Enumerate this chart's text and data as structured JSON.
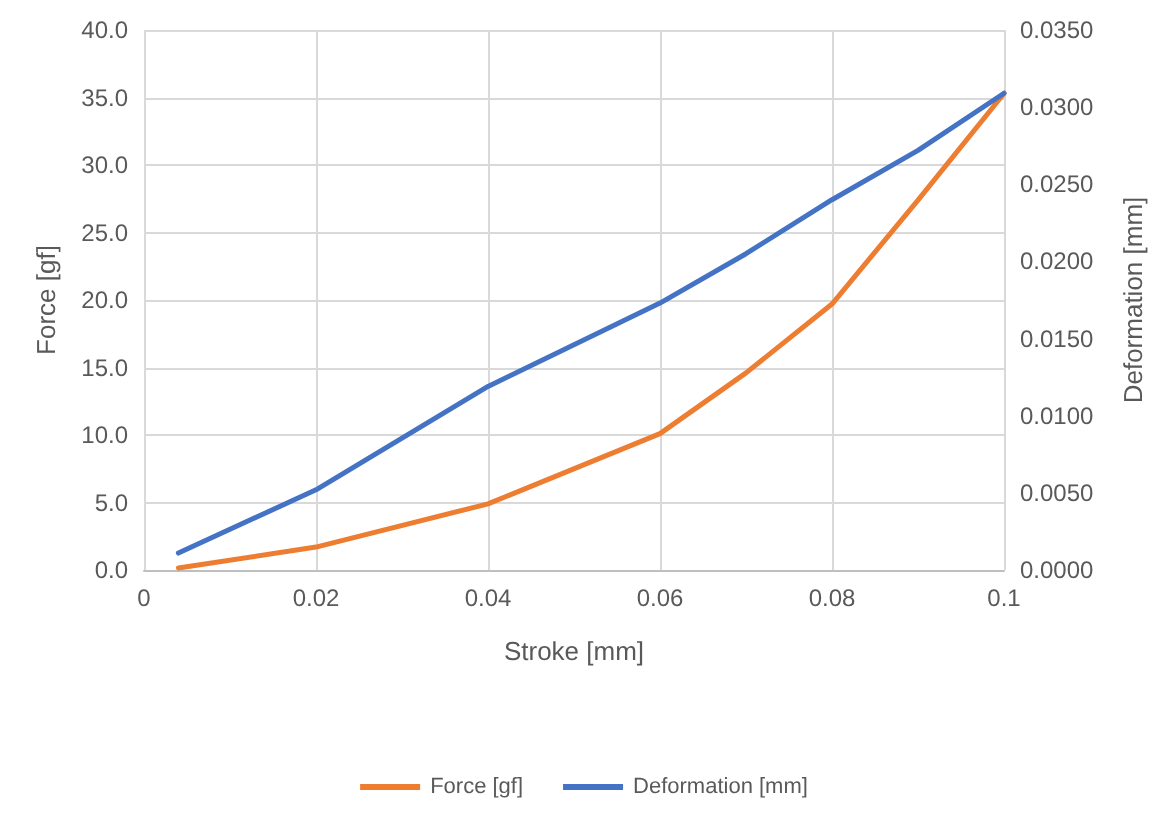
{
  "chart_data": {
    "type": "line",
    "xlabel": "Stroke [mm]",
    "ylabel": "Force [gf]",
    "y2label": "Deformation [mm]",
    "xlim": [
      0,
      0.1
    ],
    "xticks": [
      {
        "value": 0,
        "label": "0"
      },
      {
        "value": 0.02,
        "label": "0.02"
      },
      {
        "value": 0.04,
        "label": "0.04"
      },
      {
        "value": 0.06,
        "label": "0.06"
      },
      {
        "value": 0.08,
        "label": "0.08"
      },
      {
        "value": 0.1,
        "label": "0.1"
      }
    ],
    "ylim": [
      0,
      40
    ],
    "yticks": [
      {
        "value": 0,
        "label": "0.0"
      },
      {
        "value": 5,
        "label": "5.0"
      },
      {
        "value": 10,
        "label": "10.0"
      },
      {
        "value": 15,
        "label": "15.0"
      },
      {
        "value": 20,
        "label": "20.0"
      },
      {
        "value": 25,
        "label": "25.0"
      },
      {
        "value": 30,
        "label": "30.0"
      },
      {
        "value": 35,
        "label": "35.0"
      },
      {
        "value": 40,
        "label": "40.0"
      }
    ],
    "y2lim": [
      0,
      0.035
    ],
    "y2ticks": [
      {
        "value": 0,
        "label": "0.0000"
      },
      {
        "value": 0.005,
        "label": "0.0050"
      },
      {
        "value": 0.01,
        "label": "0.0100"
      },
      {
        "value": 0.015,
        "label": "0.0150"
      },
      {
        "value": 0.02,
        "label": "0.0200"
      },
      {
        "value": 0.025,
        "label": "0.0250"
      },
      {
        "value": 0.03,
        "label": "0.0300"
      },
      {
        "value": 0.035,
        "label": "0.0350"
      }
    ],
    "x": [
      0.004,
      0.02,
      0.04,
      0.06,
      0.07,
      0.08,
      0.09,
      0.1
    ],
    "series": [
      {
        "name": "Force [gf]",
        "color": "#ed7d31",
        "values": [
          0.15,
          1.7,
          4.9,
          10.1,
          14.6,
          19.7,
          27.4,
          35.3
        ]
      },
      {
        "name": "Deformation [mm]",
        "color": "#4472c4",
        "axis": "y2",
        "values": [
          0.0011,
          0.0052,
          0.0119,
          0.0173,
          0.0205,
          0.024,
          0.0272,
          0.0309
        ]
      }
    ],
    "grid": true,
    "legend": "bottom",
    "marker": "none",
    "line_style": "solid"
  }
}
